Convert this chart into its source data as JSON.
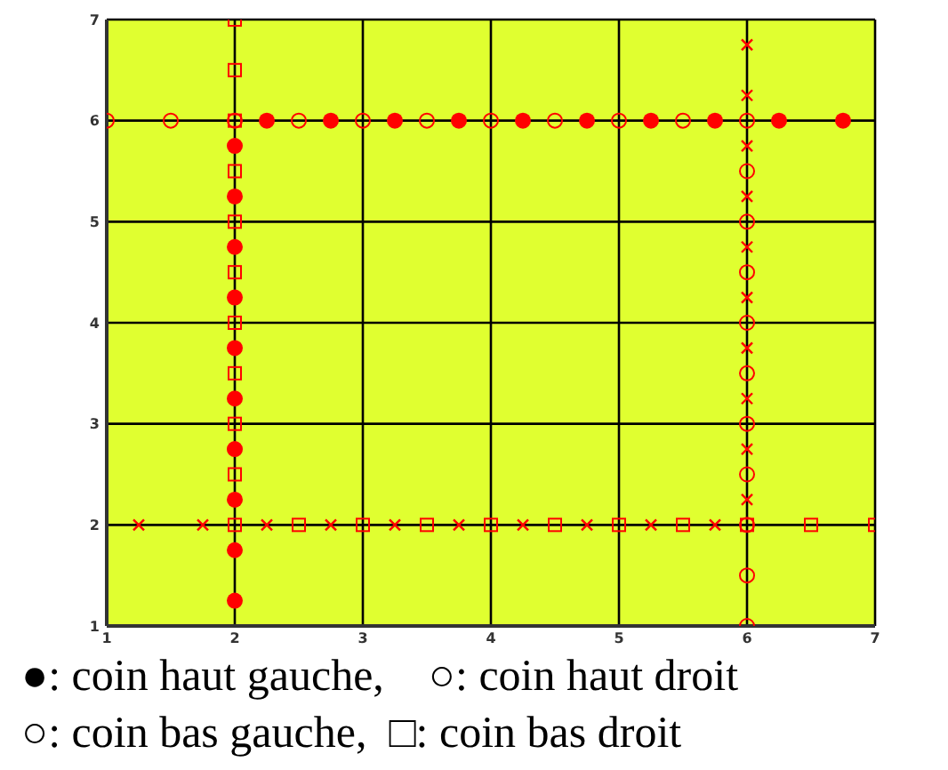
{
  "chart_data": {
    "type": "scatter",
    "xlim": [
      1,
      7
    ],
    "ylim": [
      1,
      7
    ],
    "xticks": [
      1,
      2,
      3,
      4,
      5,
      6,
      7
    ],
    "yticks": [
      1,
      2,
      3,
      4,
      5,
      6,
      7
    ],
    "grid": true,
    "series": [
      {
        "color": "#ff0000",
        "marker": "circle",
        "x": [
          2,
          2,
          2,
          2,
          2,
          2,
          2,
          2,
          2,
          2,
          2.25,
          2.75,
          3.25,
          3.75,
          4.25,
          4.75,
          5.25,
          5.75,
          6.25,
          6.75
        ],
        "values": [
          1.25,
          1.75,
          2.25,
          2.75,
          3.25,
          3.75,
          4.25,
          4.75,
          5.25,
          5.75,
          6,
          6,
          6,
          6,
          6,
          6,
          6,
          6,
          6,
          6
        ]
      },
      {
        "color": "#ff0000",
        "marker": "circle",
        "x": [
          1,
          1.5,
          2,
          2.5,
          3,
          3.5,
          4,
          4.5,
          5,
          5.5,
          6,
          6,
          6,
          6,
          6,
          6,
          6,
          6,
          6,
          6,
          6
        ],
        "values": [
          6,
          6,
          6,
          6,
          6,
          6,
          6,
          6,
          6,
          6,
          6,
          5.5,
          5,
          4.5,
          4,
          3.5,
          3,
          2.5,
          2,
          1.5,
          1
        ]
      },
      {
        "color": "#ff0000",
        "marker": "cross",
        "x": [
          6,
          6,
          6,
          6,
          6,
          6,
          6,
          6,
          6,
          6,
          5.75,
          5.25,
          4.75,
          4.25,
          3.75,
          3.25,
          2.75,
          2.25,
          1.75,
          1.25
        ],
        "values": [
          6.75,
          6.25,
          5.75,
          5.25,
          4.75,
          4.25,
          3.75,
          3.25,
          2.75,
          2.25,
          2,
          2,
          2,
          2,
          2,
          2,
          2,
          2,
          2,
          2
        ]
      },
      {
        "color": "#ff0000",
        "marker": "square",
        "x": [
          2,
          2,
          2,
          2,
          2,
          2,
          2,
          2,
          2,
          2,
          2,
          2.5,
          3,
          3.5,
          4,
          4.5,
          5,
          5.5,
          6,
          6.5,
          7
        ],
        "values": [
          7,
          6.5,
          6,
          5.5,
          5,
          4.5,
          4,
          3.5,
          3,
          2.5,
          2,
          2,
          2,
          2,
          2,
          2,
          2,
          2,
          2,
          2,
          2
        ]
      }
    ],
    "annotations": [
      "●: coin haut gauche,    ○: coin haut droit",
      "○: coin bas gauche,  □: coin bas droit"
    ]
  }
}
